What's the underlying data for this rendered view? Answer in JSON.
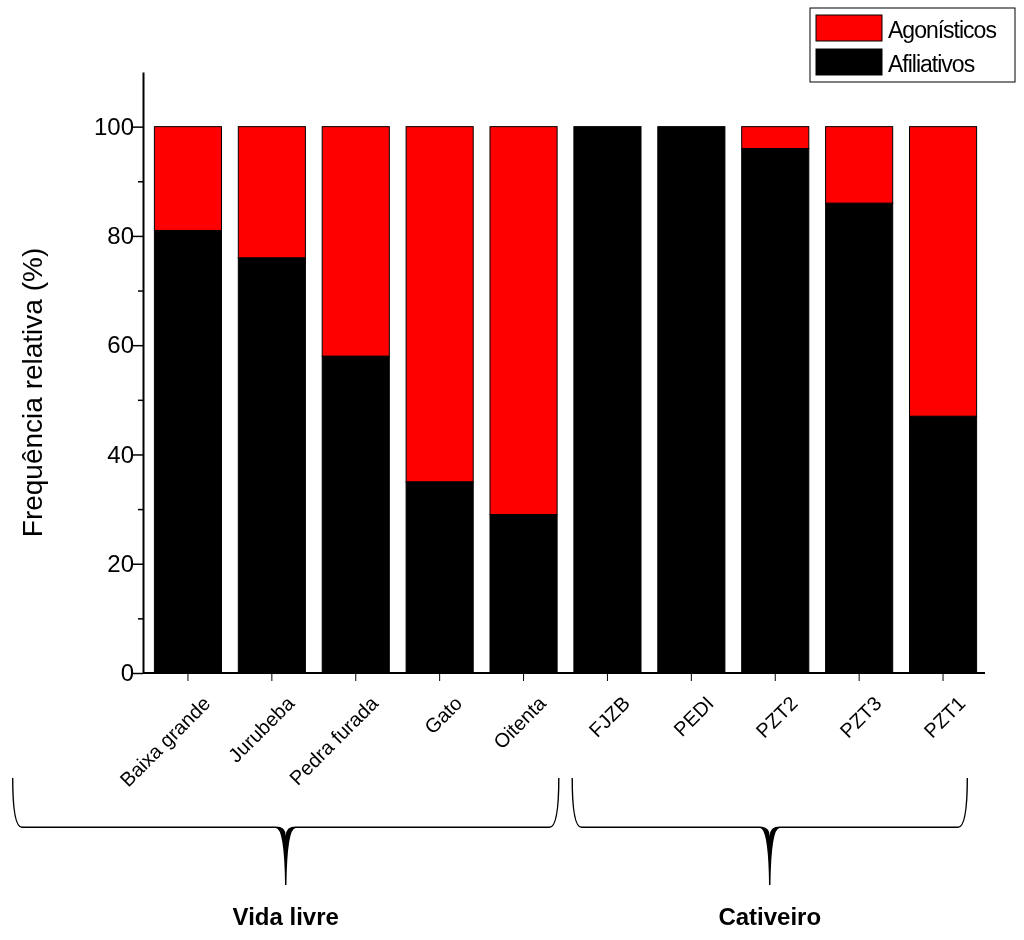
{
  "chart_data": {
    "type": "bar",
    "stacked": true,
    "ylabel": "Frequência relativa (%)",
    "categories": [
      "Baixa grande",
      "Jurubeba",
      "Pedra furada",
      "Gato",
      "Oitenta",
      "FJZB",
      "PEDI",
      "PZT2",
      "PZT3",
      "PZT1"
    ],
    "series": [
      {
        "name": "Afiliativos",
        "color": "#000000",
        "values": [
          81,
          76,
          58,
          35,
          29,
          100,
          100,
          96,
          86,
          47
        ]
      },
      {
        "name": "Agonísticos",
        "color": "#ff0000",
        "values": [
          19,
          24,
          42,
          65,
          71,
          0,
          0,
          4,
          14,
          53
        ]
      }
    ],
    "ylim": [
      0,
      110
    ],
    "yticks": [
      0,
      {
        "value": 10,
        "label": null
      },
      20,
      {
        "value": 30,
        "label": null
      },
      40,
      {
        "value": 50,
        "label": null
      },
      60,
      {
        "value": 70,
        "label": null
      },
      80,
      {
        "value": 90,
        "label": null
      },
      100
    ],
    "legend": "top right",
    "annotations": [
      "Vida livre",
      "Cativeiro"
    ]
  }
}
